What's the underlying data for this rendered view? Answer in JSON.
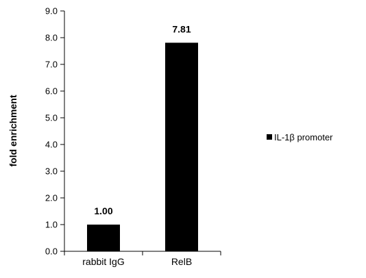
{
  "chart_data": {
    "type": "bar",
    "categories": [
      "rabbit IgG",
      "RelB"
    ],
    "series": [
      {
        "name": "IL-1β promoter",
        "values": [
          1.0,
          7.81
        ],
        "color": "#000000"
      }
    ],
    "data_labels": [
      "1.00",
      "7.81"
    ],
    "title": "",
    "xlabel": "",
    "ylabel": "fold enrichment",
    "ylim": [
      0,
      9
    ],
    "yticks": [
      "0.0",
      "1.0",
      "2.0",
      "3.0",
      "4.0",
      "5.0",
      "6.0",
      "7.0",
      "8.0",
      "9.0"
    ],
    "grid": false,
    "legend_position": "right"
  }
}
